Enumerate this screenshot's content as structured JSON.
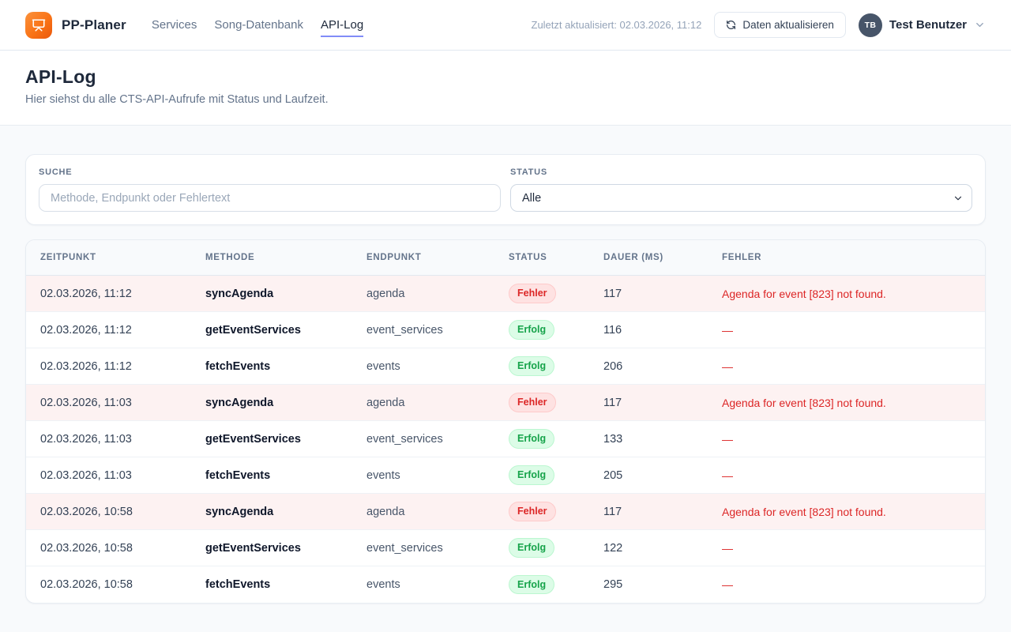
{
  "navbar": {
    "brand": "PP-Planer",
    "nav_items": [
      {
        "label": "Services",
        "active": false
      },
      {
        "label": "Song-Datenbank",
        "active": false
      },
      {
        "label": "API-Log",
        "active": true
      }
    ],
    "last_updated": "Zuletzt aktualisiert: 02.03.2026, 11:12",
    "refresh_button": "Daten aktualisieren",
    "user": {
      "initials": "TB",
      "name": "Test Benutzer"
    }
  },
  "page_header": {
    "title": "API-Log",
    "subtitle": "Hier siehst du alle CTS-API-Aufrufe mit Status und Laufzeit."
  },
  "filters": {
    "search_label": "SUCHE",
    "search_placeholder": "Methode, Endpunkt oder Fehlertext",
    "search_value": "",
    "status_label": "STATUS",
    "status_value": "Alle"
  },
  "table": {
    "columns": [
      "ZEITPUNKT",
      "METHODE",
      "ENDPUNKT",
      "STATUS",
      "DAUER (MS)",
      "FEHLER"
    ],
    "rows": [
      {
        "zeitpunkt": "02.03.2026, 11:12",
        "methode": "syncAgenda",
        "endpunkt": "agenda",
        "status": "Fehler",
        "status_type": "error",
        "dauer": "117",
        "fehler": "Agenda for event [823] not found."
      },
      {
        "zeitpunkt": "02.03.2026, 11:12",
        "methode": "getEventServices",
        "endpunkt": "event_services",
        "status": "Erfolg",
        "status_type": "success",
        "dauer": "116",
        "fehler": "—"
      },
      {
        "zeitpunkt": "02.03.2026, 11:12",
        "methode": "fetchEvents",
        "endpunkt": "events",
        "status": "Erfolg",
        "status_type": "success",
        "dauer": "206",
        "fehler": "—"
      },
      {
        "zeitpunkt": "02.03.2026, 11:03",
        "methode": "syncAgenda",
        "endpunkt": "agenda",
        "status": "Fehler",
        "status_type": "error",
        "dauer": "117",
        "fehler": "Agenda for event [823] not found."
      },
      {
        "zeitpunkt": "02.03.2026, 11:03",
        "methode": "getEventServices",
        "endpunkt": "event_services",
        "status": "Erfolg",
        "status_type": "success",
        "dauer": "133",
        "fehler": "—"
      },
      {
        "zeitpunkt": "02.03.2026, 11:03",
        "methode": "fetchEvents",
        "endpunkt": "events",
        "status": "Erfolg",
        "status_type": "success",
        "dauer": "205",
        "fehler": "—"
      },
      {
        "zeitpunkt": "02.03.2026, 10:58",
        "methode": "syncAgenda",
        "endpunkt": "agenda",
        "status": "Fehler",
        "status_type": "error",
        "dauer": "117",
        "fehler": "Agenda for event [823] not found."
      },
      {
        "zeitpunkt": "02.03.2026, 10:58",
        "methode": "getEventServices",
        "endpunkt": "event_services",
        "status": "Erfolg",
        "status_type": "success",
        "dauer": "122",
        "fehler": "—"
      },
      {
        "zeitpunkt": "02.03.2026, 10:58",
        "methode": "fetchEvents",
        "endpunkt": "events",
        "status": "Erfolg",
        "status_type": "success",
        "dauer": "295",
        "fehler": "—"
      }
    ]
  },
  "colors": {
    "brand-orange": "#f97316",
    "brand-orange-light": "#fb923c",
    "accent-indigo": "#818cf8",
    "error-red": "#dc2626",
    "error-bg": "#fee2e2",
    "error-row-bg": "#fdf2f2",
    "success-green": "#16a34a",
    "success-bg": "#dcfce7",
    "page-bg": "#f8fafc"
  }
}
